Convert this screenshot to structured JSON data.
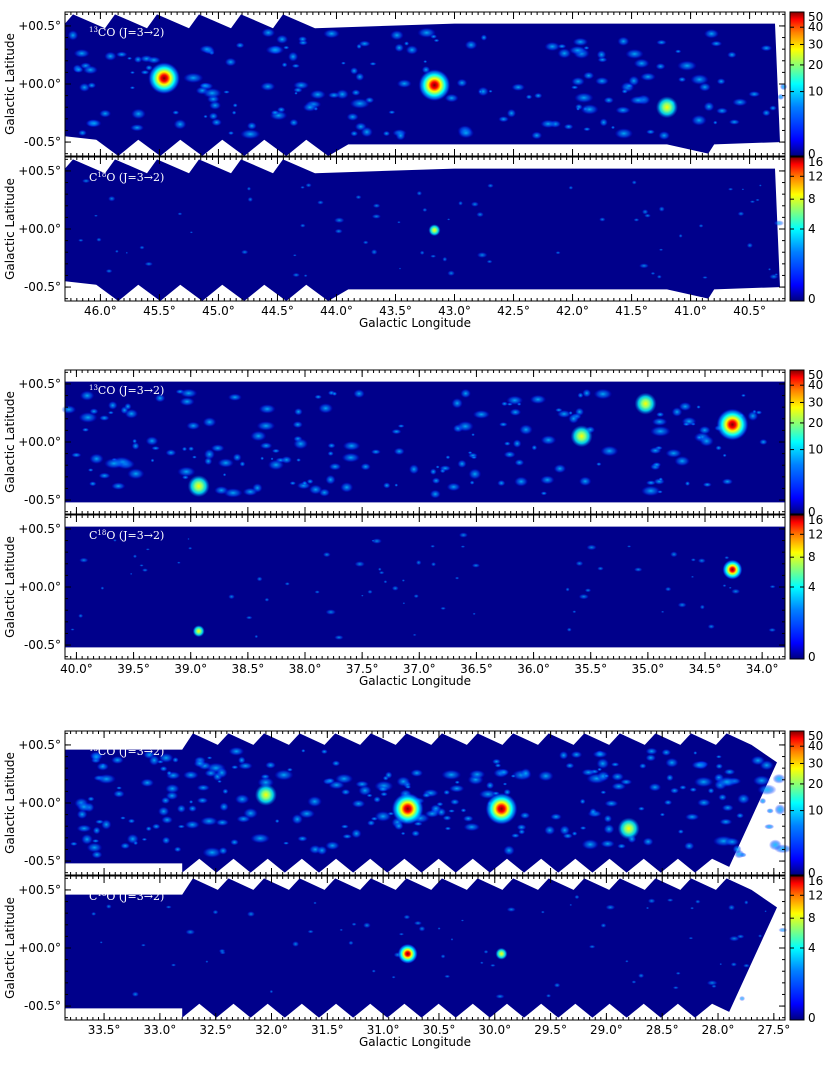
{
  "figure": {
    "common": {
      "ylabel": "Galactic Latitude",
      "xlabel": "Galactic Longitude",
      "y_ticks": [
        "+00.5°",
        "+00.0°",
        "-00.5°"
      ],
      "y_tick_values": [
        0.5,
        0.0,
        -0.5
      ]
    },
    "colors": {
      "background": "#00008B",
      "colormap": [
        "#00007f",
        "#0000ff",
        "#007fff",
        "#00ffff",
        "#7fff7f",
        "#ffff00",
        "#ff7f00",
        "#ff0000",
        "#7f0000"
      ]
    },
    "line_labels": {
      "co13_prefix": "13",
      "co13_main": "CO",
      "c18o_prefix": "C",
      "c18o_sup": "18",
      "c18o_main": "O",
      "transition": "(J=3→2)"
    }
  },
  "chart_data": [
    {
      "type": "heatmap",
      "row": 1,
      "panel": "13CO (J=3→2)",
      "xlabel": "",
      "ylabel": "Galactic Latitude",
      "xlim": [
        46.3,
        40.2
      ],
      "ylim": [
        -0.62,
        0.62
      ],
      "y_ticks": [
        "+00.5°",
        "+00.0°",
        "-00.5°"
      ],
      "colorbar": {
        "ticks": [
          0,
          10,
          20,
          30,
          40,
          50
        ],
        "labels": [
          "0",
          "10",
          "20",
          "30",
          "40",
          "50"
        ]
      },
      "bright_sources": [
        {
          "l": 45.46,
          "b": 0.05,
          "peak": "high"
        },
        {
          "l": 43.17,
          "b": -0.01,
          "peak": "high"
        },
        {
          "l": 41.2,
          "b": -0.2,
          "peak": "medium"
        }
      ]
    },
    {
      "type": "heatmap",
      "row": 1,
      "panel": "C18O (J=3→2)",
      "xlabel": "Galactic Longitude",
      "ylabel": "Galactic Latitude",
      "xlim": [
        46.3,
        40.2
      ],
      "ylim": [
        -0.62,
        0.62
      ],
      "x_ticks": [
        "46.0°",
        "45.5°",
        "45.0°",
        "44.5°",
        "44.0°",
        "43.5°",
        "43.0°",
        "42.5°",
        "42.0°",
        "41.5°",
        "41.0°",
        "40.5°"
      ],
      "x_tick_values": [
        46.0,
        45.5,
        45.0,
        44.5,
        44.0,
        43.5,
        43.0,
        42.5,
        42.0,
        41.5,
        41.0,
        40.5
      ],
      "y_ticks": [
        "+00.5°",
        "+00.0°",
        "-00.5°"
      ],
      "colorbar": {
        "ticks": [
          0,
          4,
          8,
          12,
          16
        ],
        "labels": [
          "0",
          "4",
          "8",
          "12",
          "16"
        ]
      },
      "bright_sources": [
        {
          "l": 43.17,
          "b": -0.01,
          "peak": "medium"
        }
      ]
    },
    {
      "type": "heatmap",
      "row": 2,
      "panel": "13CO (J=3→2)",
      "xlabel": "",
      "ylabel": "Galactic Latitude",
      "xlim": [
        40.1,
        33.8
      ],
      "ylim": [
        -0.62,
        0.62
      ],
      "y_ticks": [
        "+00.5°",
        "+00.0°",
        "-00.5°"
      ],
      "colorbar": {
        "ticks": [
          0,
          10,
          20,
          30,
          40,
          50
        ],
        "labels": [
          "0",
          "10",
          "20",
          "30",
          "40",
          "50"
        ]
      },
      "bright_sources": [
        {
          "l": 34.26,
          "b": 0.15,
          "peak": "high"
        },
        {
          "l": 35.58,
          "b": 0.05,
          "peak": "medium"
        },
        {
          "l": 38.93,
          "b": -0.38,
          "peak": "medium"
        },
        {
          "l": 35.02,
          "b": 0.33,
          "peak": "medium"
        }
      ]
    },
    {
      "type": "heatmap",
      "row": 2,
      "panel": "C18O (J=3→2)",
      "xlabel": "Galactic Longitude",
      "ylabel": "Galactic Latitude",
      "xlim": [
        40.1,
        33.8
      ],
      "ylim": [
        -0.62,
        0.62
      ],
      "x_ticks": [
        "40.0°",
        "39.5°",
        "39.0°",
        "38.5°",
        "38.0°",
        "37.5°",
        "37.0°",
        "36.5°",
        "36.0°",
        "35.5°",
        "35.0°",
        "34.5°",
        "34.0°"
      ],
      "x_tick_values": [
        40.0,
        39.5,
        39.0,
        38.5,
        38.0,
        37.5,
        37.0,
        36.5,
        36.0,
        35.5,
        35.0,
        34.5,
        34.0
      ],
      "y_ticks": [
        "+00.5°",
        "+00.0°",
        "-00.5°"
      ],
      "colorbar": {
        "ticks": [
          0,
          4,
          8,
          12,
          16
        ],
        "labels": [
          "0",
          "4",
          "8",
          "12",
          "16"
        ]
      },
      "bright_sources": [
        {
          "l": 34.26,
          "b": 0.15,
          "peak": "high"
        },
        {
          "l": 38.93,
          "b": -0.38,
          "peak": "medium"
        }
      ]
    },
    {
      "type": "heatmap",
      "row": 3,
      "panel": "13CO (J=3→2)",
      "xlabel": "",
      "ylabel": "Galactic Latitude",
      "xlim": [
        33.85,
        27.4
      ],
      "ylim": [
        -0.62,
        0.62
      ],
      "y_ticks": [
        "+00.5°",
        "+00.0°",
        "-00.5°"
      ],
      "colorbar": {
        "ticks": [
          0,
          10,
          20,
          30,
          40,
          50
        ],
        "labels": [
          "0",
          "10",
          "20",
          "30",
          "40",
          "50"
        ]
      },
      "bright_sources": [
        {
          "l": 30.78,
          "b": -0.05,
          "peak": "high"
        },
        {
          "l": 29.94,
          "b": -0.05,
          "peak": "high"
        },
        {
          "l": 32.05,
          "b": 0.07,
          "peak": "medium"
        },
        {
          "l": 28.8,
          "b": -0.22,
          "peak": "medium"
        }
      ]
    },
    {
      "type": "heatmap",
      "row": 3,
      "panel": "C18O (J=3→2)",
      "xlabel": "Galactic Longitude",
      "ylabel": "Galactic Latitude",
      "xlim": [
        33.85,
        27.4
      ],
      "ylim": [
        -0.62,
        0.62
      ],
      "x_ticks": [
        "33.5°",
        "33.0°",
        "32.5°",
        "32.0°",
        "31.5°",
        "31.0°",
        "30.5°",
        "30.0°",
        "29.5°",
        "29.0°",
        "28.5°",
        "28.0°",
        "27.5°"
      ],
      "x_tick_values": [
        33.5,
        33.0,
        32.5,
        32.0,
        31.5,
        31.0,
        30.5,
        30.0,
        29.5,
        29.0,
        28.5,
        28.0,
        27.5
      ],
      "y_ticks": [
        "+00.5°",
        "+00.0°",
        "-00.5°"
      ],
      "colorbar": {
        "ticks": [
          0,
          4,
          8,
          12,
          16
        ],
        "labels": [
          "0",
          "4",
          "8",
          "12",
          "16"
        ]
      },
      "bright_sources": [
        {
          "l": 30.78,
          "b": -0.05,
          "peak": "high"
        },
        {
          "l": 29.94,
          "b": -0.05,
          "peak": "medium"
        }
      ]
    }
  ]
}
